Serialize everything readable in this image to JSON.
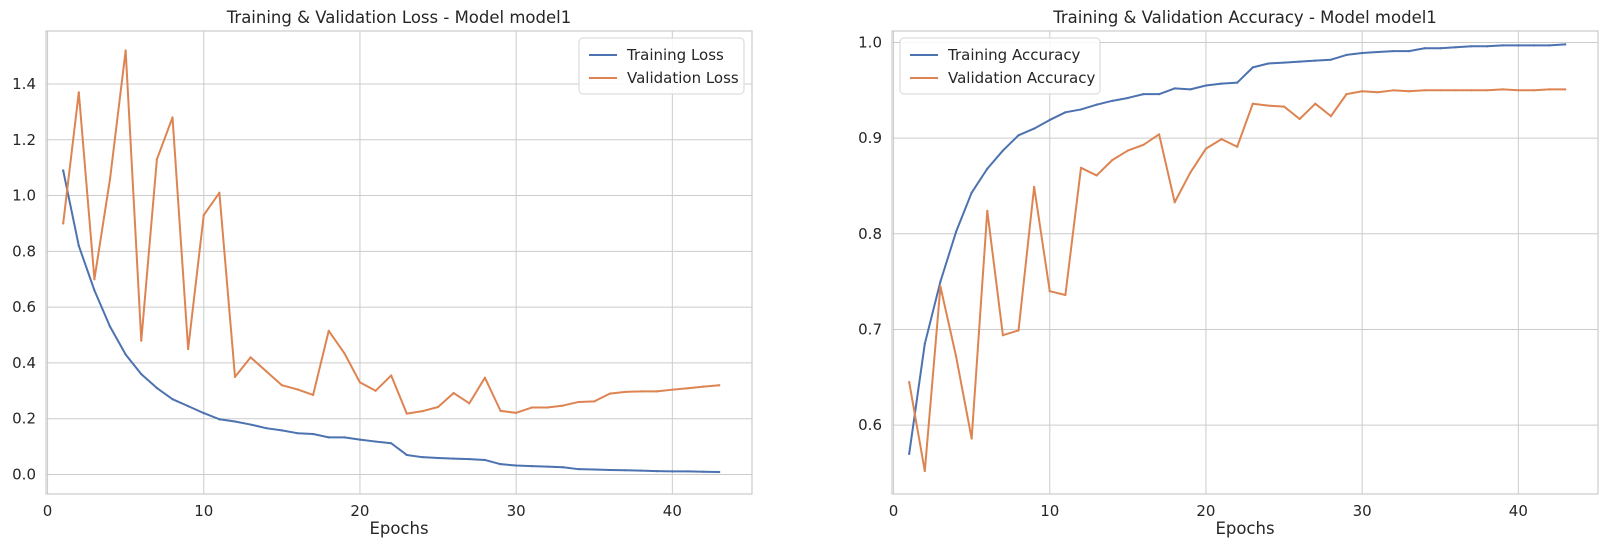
{
  "chart_data": [
    {
      "type": "line",
      "title": "Training & Validation Loss - Model model1",
      "xlabel": "Epochs",
      "ylabel": "",
      "xlim": [
        -0.1,
        45.1
      ],
      "ylim": [
        -0.07,
        1.59
      ],
      "xticks": [
        0,
        10,
        20,
        30,
        40
      ],
      "yticks": [
        0.0,
        0.2,
        0.4,
        0.6,
        0.8,
        1.0,
        1.2,
        1.4
      ],
      "ytick_format": 1,
      "grid": true,
      "legend": "top-right",
      "x": [
        1,
        2,
        3,
        4,
        5,
        6,
        7,
        8,
        9,
        10,
        11,
        12,
        13,
        14,
        15,
        16,
        17,
        18,
        19,
        20,
        21,
        22,
        23,
        24,
        25,
        26,
        27,
        28,
        29,
        30,
        31,
        32,
        33,
        34,
        35,
        36,
        37,
        38,
        39,
        40,
        41,
        42,
        43
      ],
      "series": [
        {
          "name": "Training Loss",
          "color": "#4c72b0",
          "values": [
            1.09,
            0.82,
            0.66,
            0.53,
            0.43,
            0.36,
            0.31,
            0.27,
            0.245,
            0.22,
            0.198,
            0.19,
            0.179,
            0.166,
            0.158,
            0.148,
            0.145,
            0.133,
            0.133,
            0.125,
            0.118,
            0.112,
            0.07,
            0.062,
            0.059,
            0.057,
            0.055,
            0.052,
            0.037,
            0.032,
            0.03,
            0.028,
            0.026,
            0.019,
            0.018,
            0.016,
            0.015,
            0.014,
            0.012,
            0.011,
            0.011,
            0.01,
            0.009
          ]
        },
        {
          "name": "Validation Loss",
          "color": "#dd8452",
          "values": [
            0.9,
            1.37,
            0.7,
            1.06,
            1.52,
            0.48,
            1.13,
            1.28,
            0.45,
            0.93,
            1.01,
            0.35,
            0.42,
            0.37,
            0.32,
            0.305,
            0.285,
            0.515,
            0.435,
            0.33,
            0.3,
            0.355,
            0.218,
            0.227,
            0.242,
            0.292,
            0.255,
            0.347,
            0.228,
            0.221,
            0.24,
            0.24,
            0.247,
            0.26,
            0.262,
            0.29,
            0.296,
            0.298,
            0.298,
            0.304,
            0.309,
            0.315,
            0.32
          ]
        }
      ]
    },
    {
      "type": "line",
      "title": "Training & Validation Accuracy - Model model1",
      "xlabel": "Epochs",
      "ylabel": "",
      "xlim": [
        -0.1,
        45.1
      ],
      "ylim": [
        0.528,
        1.012
      ],
      "xticks": [
        0,
        10,
        20,
        30,
        40
      ],
      "yticks": [
        0.6,
        0.7,
        0.8,
        0.9,
        1.0
      ],
      "ytick_format": 1,
      "grid": true,
      "legend": "top-left",
      "x": [
        1,
        2,
        3,
        4,
        5,
        6,
        7,
        8,
        9,
        10,
        11,
        12,
        13,
        14,
        15,
        16,
        17,
        18,
        19,
        20,
        21,
        22,
        23,
        24,
        25,
        26,
        27,
        28,
        29,
        30,
        31,
        32,
        33,
        34,
        35,
        36,
        37,
        38,
        39,
        40,
        41,
        42,
        43
      ],
      "series": [
        {
          "name": "Training Accuracy",
          "color": "#4c72b0",
          "values": [
            0.57,
            0.685,
            0.75,
            0.802,
            0.843,
            0.868,
            0.887,
            0.903,
            0.91,
            0.919,
            0.927,
            0.93,
            0.935,
            0.939,
            0.942,
            0.946,
            0.946,
            0.952,
            0.951,
            0.955,
            0.957,
            0.958,
            0.974,
            0.978,
            0.979,
            0.98,
            0.981,
            0.982,
            0.987,
            0.989,
            0.99,
            0.991,
            0.991,
            0.994,
            0.994,
            0.995,
            0.996,
            0.996,
            0.997,
            0.997,
            0.997,
            0.997,
            0.998
          ]
        },
        {
          "name": "Validation Accuracy",
          "color": "#dd8452",
          "values": [
            0.645,
            0.552,
            0.745,
            0.672,
            0.586,
            0.824,
            0.694,
            0.699,
            0.849,
            0.74,
            0.736,
            0.869,
            0.861,
            0.877,
            0.887,
            0.893,
            0.904,
            0.833,
            0.864,
            0.889,
            0.899,
            0.891,
            0.936,
            0.934,
            0.933,
            0.92,
            0.936,
            0.923,
            0.946,
            0.949,
            0.948,
            0.95,
            0.949,
            0.95,
            0.95,
            0.95,
            0.95,
            0.95,
            0.951,
            0.95,
            0.95,
            0.951,
            0.951
          ]
        }
      ]
    }
  ]
}
